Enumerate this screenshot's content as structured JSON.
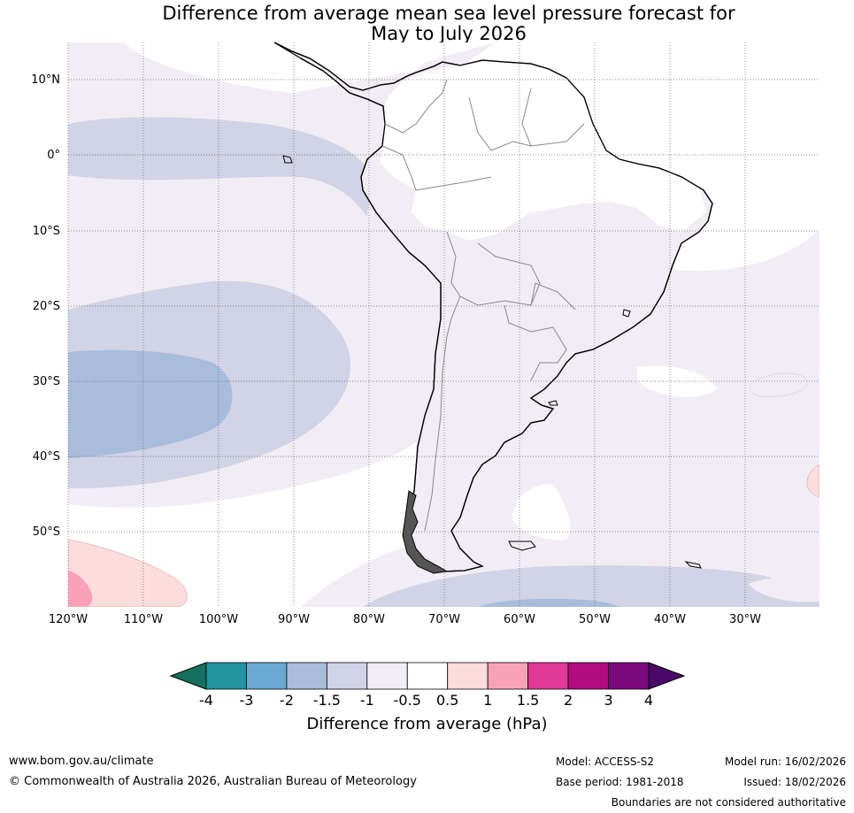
{
  "title": {
    "line1": "Difference from average mean sea level pressure forecast for",
    "line2": "May to July 2026"
  },
  "map": {
    "lat_labels": [
      "10°N",
      "0°",
      "10°S",
      "20°S",
      "30°S",
      "40°S",
      "50°S"
    ],
    "lon_labels": [
      "120°W",
      "110°W",
      "100°W",
      "90°W",
      "80°W",
      "70°W",
      "60°W",
      "50°W",
      "40°W",
      "30°W"
    ]
  },
  "colorbar": {
    "ticks": [
      "-4",
      "-3",
      "-2",
      "-1.5",
      "-1",
      "-0.5",
      "0.5",
      "1",
      "1.5",
      "2",
      "3",
      "4"
    ],
    "colors": [
      "#157060",
      "#2294a0",
      "#6aa9d2",
      "#a8bcdb",
      "#d1d3e6",
      "#f2edf5",
      "#ffffff",
      "#fddcdd",
      "#f9a1b8",
      "#e13a98",
      "#b30c80",
      "#7c0a7c",
      "#4b0868"
    ],
    "title": "Difference from average (hPa)"
  },
  "footer": {
    "website": "www.bom.gov.au/climate",
    "copyright": "© Commonwealth of Australia 2026, Australian Bureau of Meteorology",
    "model": "Model: ACCESS-S2",
    "base_period": "Base period: 1981-2018",
    "model_run": "Model run: 16/02/2026",
    "issued": "Issued: 18/02/2026",
    "disclaimer": "Boundaries are not considered authoritative"
  }
}
